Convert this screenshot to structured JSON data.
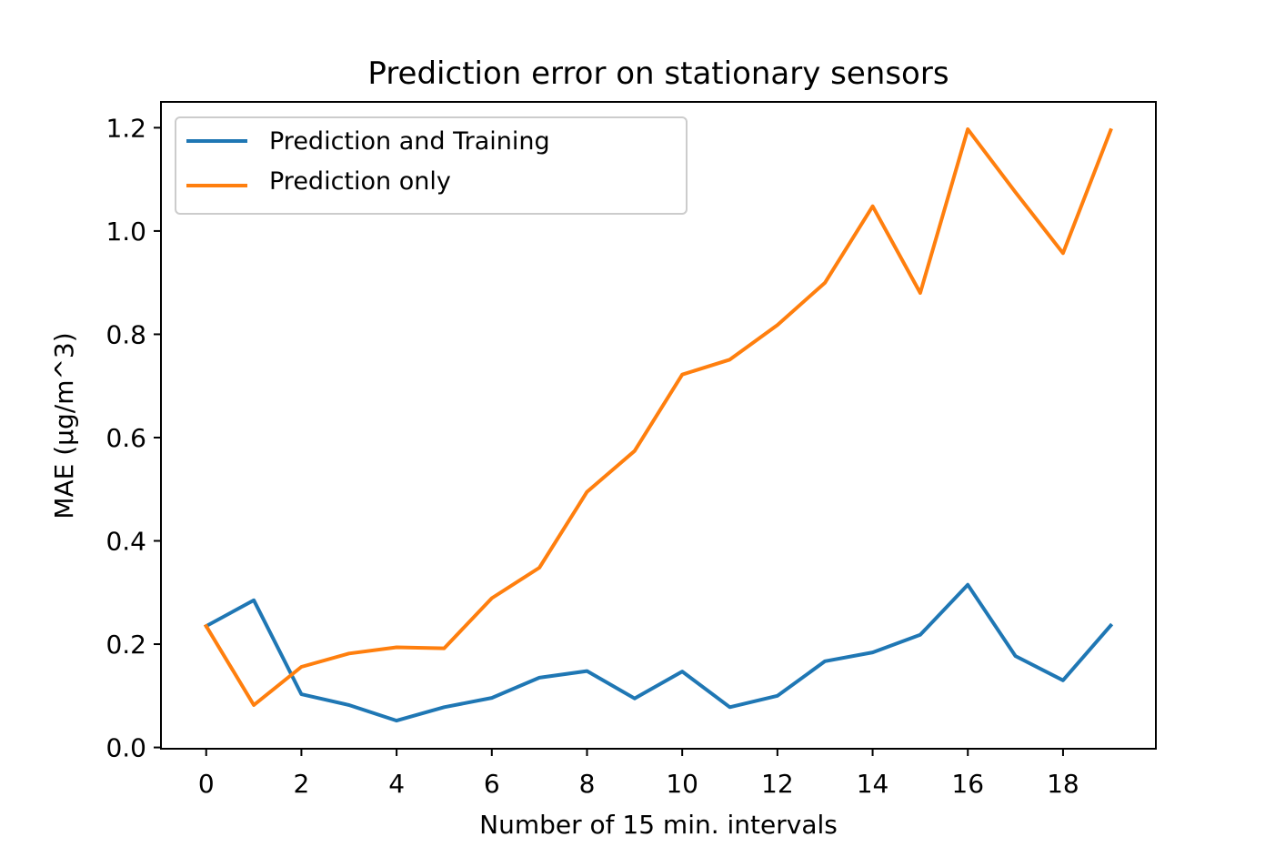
{
  "chart_data": {
    "type": "line",
    "title": "Prediction error on stationary sensors",
    "xlabel": "Number of 15 min. intervals",
    "ylabel": "MAE (µg/m^3)",
    "xlim": [
      -0.95,
      19.95
    ],
    "ylim": [
      -0.0025,
      1.25
    ],
    "xticks": [
      0,
      2,
      4,
      6,
      8,
      10,
      12,
      14,
      16,
      18
    ],
    "xtick_labels": [
      "0",
      "2",
      "4",
      "6",
      "8",
      "10",
      "12",
      "14",
      "16",
      "18"
    ],
    "yticks": [
      0.0,
      0.2,
      0.4,
      0.6,
      0.8,
      1.0,
      1.2
    ],
    "ytick_labels": [
      "0.0",
      "0.2",
      "0.4",
      "0.6",
      "0.8",
      "1.0",
      "1.2"
    ],
    "grid": false,
    "legend_position": "top-left",
    "x": [
      0,
      1,
      2,
      3,
      4,
      5,
      6,
      7,
      8,
      9,
      10,
      11,
      12,
      13,
      14,
      15,
      16,
      17,
      18,
      19
    ],
    "series": [
      {
        "name": "Prediction and Training",
        "color": "#1f77b4",
        "values": [
          0.235,
          0.285,
          0.103,
          0.082,
          0.052,
          0.078,
          0.096,
          0.135,
          0.148,
          0.095,
          0.147,
          0.078,
          0.1,
          0.167,
          0.184,
          0.218,
          0.315,
          0.177,
          0.13,
          0.236
        ]
      },
      {
        "name": "Prediction only",
        "color": "#ff7f0e",
        "values": [
          0.235,
          0.082,
          0.156,
          0.182,
          0.194,
          0.192,
          0.289,
          0.348,
          0.495,
          0.574,
          0.722,
          0.751,
          0.818,
          0.9,
          1.048,
          0.88,
          1.197,
          1.075,
          0.957,
          1.195
        ]
      }
    ]
  }
}
